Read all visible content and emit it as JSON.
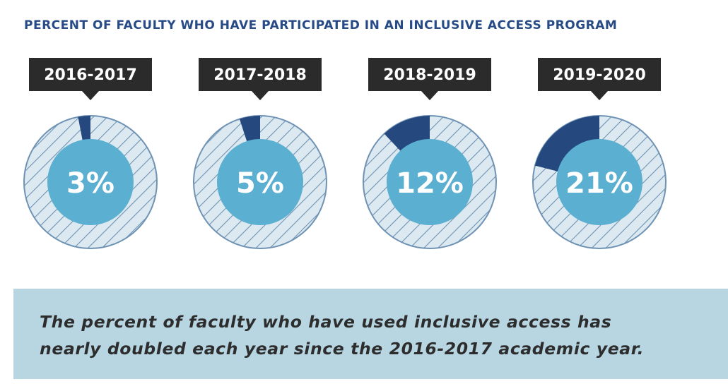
{
  "colors": {
    "title": "#274b87",
    "label_bg": "#2b2b2b",
    "label_text": "#ffffff",
    "ring_bg": "#dce9f0",
    "hatch": "#6f93b4",
    "ring_border": "#6f93b4",
    "wedge": "#25487f",
    "inner": "#5bafd0",
    "inner_text": "#ffffff",
    "banner_bg": "#b7d6e2",
    "banner_text": "#2d2d2d"
  },
  "chart_data": {
    "type": "pie",
    "title": "PERCENT OF FACULTY WHO HAVE PARTICIPATED IN AN INCLUSIVE ACCESS PROGRAM",
    "categories": [
      "2016-2017",
      "2017-2018",
      "2018-2019",
      "2019-2020"
    ],
    "values": [
      3,
      5,
      12,
      21
    ],
    "value_labels": [
      "3%",
      "5%",
      "12%",
      "21%"
    ],
    "unit": "percent"
  },
  "banner": {
    "line1": "The percent of faculty who have used inclusive access has",
    "line2": "nearly doubled each year since the 2016-2017 academic year."
  }
}
